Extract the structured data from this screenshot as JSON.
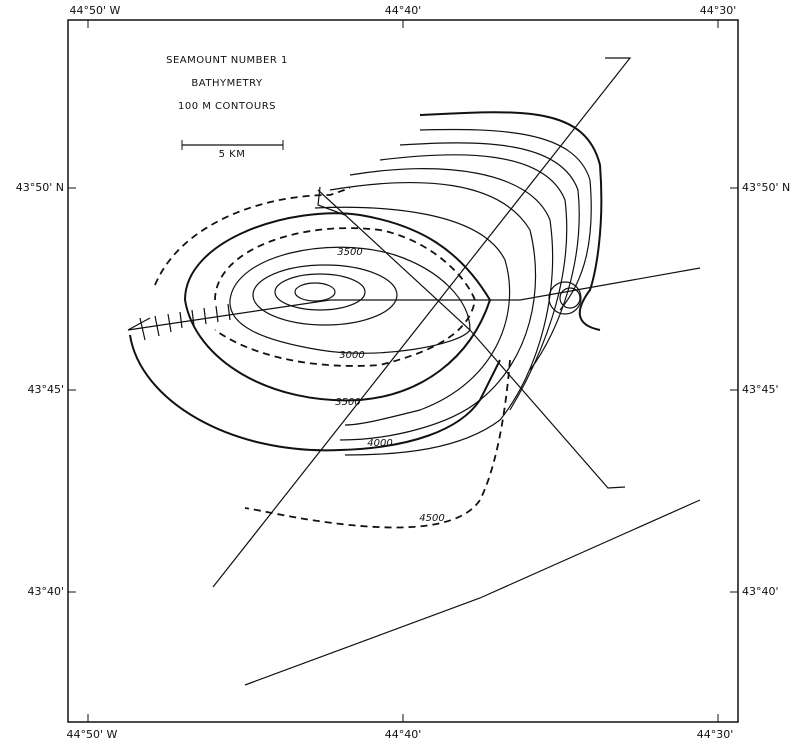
{
  "map": {
    "title": [
      "SEAMOUNT NUMBER 1",
      "BATHYMETRY",
      "100 M CONTOURS"
    ],
    "scale_label": "5 KM",
    "top_labels": [
      "44°50' W",
      "44°40'",
      "44°30'"
    ],
    "bottom_labels": [
      "44°50' W",
      "44°40'",
      "44°30'"
    ],
    "left_labels": [
      "43°50' N",
      "43°45'",
      "43°40'"
    ],
    "right_labels": [
      "43°50' N",
      "43°45'",
      "43°40'"
    ],
    "contour_labels": [
      "3500",
      "3000",
      "3500",
      "4000",
      "4500"
    ]
  }
}
